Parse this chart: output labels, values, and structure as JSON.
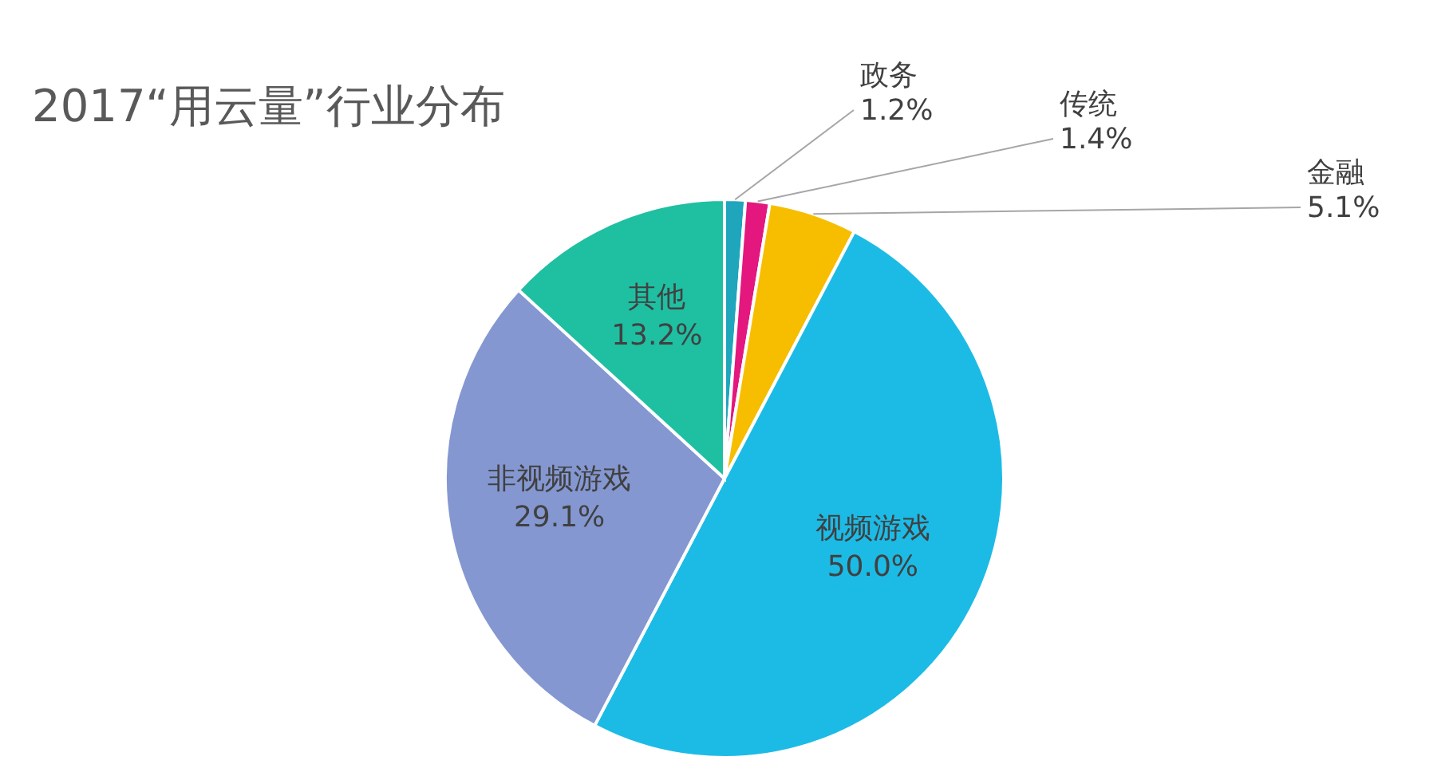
{
  "chart_data": {
    "type": "pie",
    "title": "2017“用云量”行业分布",
    "categories": [
      "政务",
      "传统",
      "金融",
      "视频游戏",
      "非视频游戏",
      "其他"
    ],
    "values": [
      1.2,
      1.4,
      5.1,
      50.0,
      29.1,
      13.2
    ],
    "value_labels": [
      "1.2%",
      "1.4%",
      "5.1%",
      "50.0%",
      "29.1%",
      "13.2%"
    ],
    "colors": [
      "#1fa6bd",
      "#e4177f",
      "#f7be00",
      "#1cbbe6",
      "#8497d1",
      "#1fbfa2"
    ]
  }
}
